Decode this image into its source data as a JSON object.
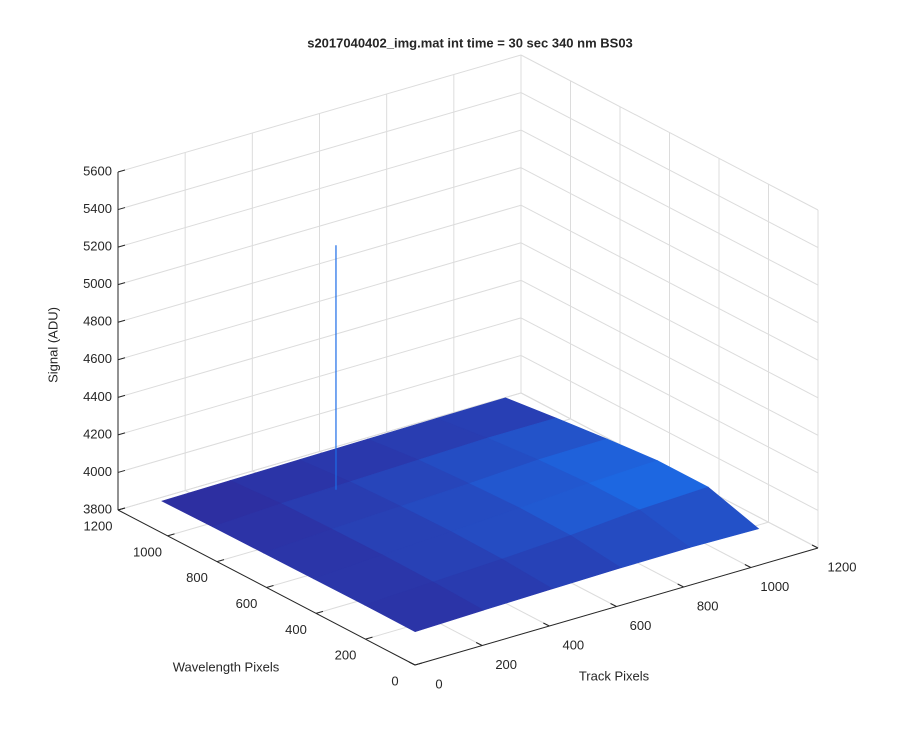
{
  "chart_data": {
    "type": "surface",
    "title": "s2017040402_img.mat int time = 30 sec  340 nm BS03",
    "xlabel": "Track Pixels",
    "ylabel": "Wavelength Pixels",
    "zlabel": "Signal (ADU)",
    "x": [
      1,
      205,
      410,
      614,
      819,
      1024
    ],
    "y": [
      1,
      205,
      410,
      614,
      819,
      1024
    ],
    "z": [
      [
        3976,
        3985,
        3992,
        3998,
        4000,
        3993
      ],
      [
        3978,
        3995,
        4010,
        4030,
        4060,
        4075
      ],
      [
        3976,
        3998,
        4015,
        4035,
        4060,
        4075
      ],
      [
        3974,
        3995,
        4010,
        4025,
        4045,
        4050
      ],
      [
        3972,
        3990,
        4000,
        4010,
        4020,
        4020
      ],
      [
        3968,
        3972,
        3976,
        3980,
        3984,
        3987
      ]
    ],
    "spike": {
      "x": 355,
      "y": 801,
      "z": 5300
    },
    "colormap": [
      "#2e2a9c",
      "#1c6ce6"
    ],
    "xlim": [
      0,
      1200
    ],
    "ylim": [
      0,
      1200
    ],
    "zlim": [
      3800,
      5600
    ],
    "xticks": [
      0,
      200,
      400,
      600,
      800,
      1000,
      1200
    ],
    "yticks": [
      0,
      200,
      400,
      600,
      800,
      1000,
      1200
    ],
    "zticks": [
      3800,
      4000,
      4200,
      4400,
      4600,
      4800,
      5000,
      5200,
      5400,
      5600
    ],
    "grid": true
  }
}
